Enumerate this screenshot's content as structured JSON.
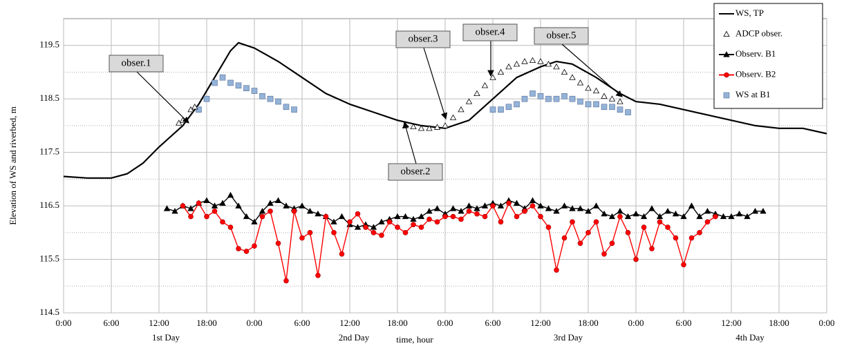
{
  "chart_data": {
    "type": "line",
    "y_label": "Elevation of WS and riverbed, m",
    "x_label": "time, hour",
    "day_labels": [
      "1st Day",
      "2nd Day",
      "3rd Day",
      "4th Day"
    ],
    "annotations": [
      "obser.1",
      "obser.2",
      "obser.3",
      "obser.4",
      "obser.5"
    ],
    "xlim": [
      0,
      96
    ],
    "xticks": [
      {
        "value": 0,
        "label": "0:00"
      },
      {
        "value": 6,
        "label": "6:00"
      },
      {
        "value": 12,
        "label": "12:00"
      },
      {
        "value": 18,
        "label": "18:00"
      },
      {
        "value": 24,
        "label": "0:00"
      },
      {
        "value": 30,
        "label": "6:00"
      },
      {
        "value": 36,
        "label": "12:00"
      },
      {
        "value": 42,
        "label": "18:00"
      },
      {
        "value": 48,
        "label": "0:00"
      },
      {
        "value": 54,
        "label": "6:00"
      },
      {
        "value": 60,
        "label": "12:00"
      },
      {
        "value": 66,
        "label": "18:00"
      },
      {
        "value": 72,
        "label": "0:00"
      },
      {
        "value": 78,
        "label": "6:00"
      },
      {
        "value": 84,
        "label": "12:00"
      },
      {
        "value": 90,
        "label": "18:00"
      },
      {
        "value": 96,
        "label": "0:00"
      }
    ],
    "ylim": [
      114.5,
      120
    ],
    "yticks": [
      114.5,
      115.5,
      116.5,
      117.5,
      118.5,
      119.5
    ],
    "y_minor_grid": [
      115,
      116,
      117,
      118,
      119
    ],
    "grid": true,
    "legend": "top-right",
    "series": [
      {
        "name": "WS, TP",
        "color": "#000000",
        "line": true,
        "marker": "none",
        "x": [
          0,
          3,
          6,
          8,
          10,
          12,
          15,
          17,
          19,
          21,
          22,
          24,
          27,
          30,
          33,
          36,
          39,
          42,
          45,
          48,
          51,
          54,
          57,
          60,
          62,
          64,
          67,
          70,
          72,
          75,
          78,
          81,
          84,
          87,
          90,
          93,
          96
        ],
        "values": [
          117.05,
          117.02,
          117.02,
          117.1,
          117.3,
          117.6,
          118.0,
          118.4,
          118.9,
          119.4,
          119.55,
          119.45,
          119.2,
          118.9,
          118.6,
          118.4,
          118.25,
          118.1,
          118.0,
          117.95,
          118.1,
          118.5,
          118.9,
          119.1,
          119.2,
          119.15,
          118.9,
          118.6,
          118.45,
          118.4,
          118.3,
          118.2,
          118.1,
          118.0,
          117.95,
          117.95,
          117.85
        ]
      },
      {
        "name": "ADCP obser.",
        "color": "#000000",
        "line": false,
        "marker": "triangle-open",
        "x": [
          14.5,
          15,
          16,
          16.5,
          43,
          44,
          45,
          46,
          47,
          48,
          49,
          50,
          51,
          52,
          53,
          54,
          55,
          56,
          57,
          58,
          59,
          60,
          61,
          62,
          63,
          64,
          65,
          66,
          67,
          68,
          69,
          70
        ],
        "values": [
          118.05,
          118.1,
          118.3,
          118.35,
          118.0,
          117.98,
          117.95,
          117.95,
          117.97,
          118.0,
          118.15,
          118.3,
          118.45,
          118.6,
          118.75,
          118.9,
          119.0,
          119.1,
          119.15,
          119.2,
          119.22,
          119.2,
          119.15,
          119.1,
          119.0,
          118.9,
          118.8,
          118.7,
          118.65,
          118.55,
          118.5,
          118.45
        ]
      },
      {
        "name": "Observ. B1",
        "color": "#000000",
        "line": true,
        "marker": "triangle",
        "x": [
          13,
          14,
          15,
          16,
          17,
          18,
          19,
          20,
          21,
          22,
          23,
          24,
          25,
          26,
          27,
          28,
          29,
          30,
          31,
          32,
          33,
          34,
          35,
          36,
          37,
          38,
          39,
          40,
          41,
          42,
          43,
          44,
          45,
          46,
          47,
          48,
          49,
          50,
          51,
          52,
          53,
          54,
          55,
          56,
          57,
          58,
          59,
          60,
          61,
          62,
          63,
          64,
          65,
          66,
          67,
          68,
          69,
          70,
          71,
          72,
          73,
          74,
          75,
          76,
          77,
          78,
          79,
          80,
          81,
          82,
          83,
          84,
          85,
          86,
          87,
          88
        ],
        "values": [
          116.45,
          116.4,
          116.5,
          116.45,
          116.55,
          116.6,
          116.5,
          116.55,
          116.7,
          116.5,
          116.3,
          116.2,
          116.4,
          116.55,
          116.6,
          116.5,
          116.45,
          116.5,
          116.4,
          116.35,
          116.3,
          116.2,
          116.3,
          116.15,
          116.1,
          116.15,
          116.1,
          116.2,
          116.25,
          116.3,
          116.3,
          116.25,
          116.3,
          116.4,
          116.45,
          116.35,
          116.45,
          116.4,
          116.5,
          116.45,
          116.5,
          116.55,
          116.5,
          116.6,
          116.55,
          116.45,
          116.6,
          116.5,
          116.45,
          116.4,
          116.5,
          116.45,
          116.45,
          116.4,
          116.5,
          116.35,
          116.3,
          116.4,
          116.3,
          116.35,
          116.3,
          116.45,
          116.3,
          116.4,
          116.35,
          116.3,
          116.5,
          116.3,
          116.4,
          116.35,
          116.3,
          116.3,
          116.35,
          116.3,
          116.4,
          116.4
        ]
      },
      {
        "name": "Observ. B2",
        "color": "#ff0000",
        "line": true,
        "marker": "circle",
        "x": [
          15,
          16,
          17,
          18,
          19,
          20,
          21,
          22,
          23,
          24,
          25,
          26,
          27,
          28,
          29,
          30,
          31,
          32,
          33,
          34,
          35,
          36,
          37,
          38,
          39,
          40,
          41,
          42,
          43,
          44,
          45,
          46,
          47,
          48,
          49,
          50,
          51,
          52,
          53,
          54,
          55,
          56,
          57,
          58,
          59,
          60,
          61,
          62,
          63,
          64,
          65,
          66,
          67,
          68,
          69,
          70,
          71,
          72,
          73,
          74,
          75,
          76,
          77,
          78,
          79,
          80,
          81,
          82
        ],
        "values": [
          116.5,
          116.3,
          116.55,
          116.3,
          116.4,
          116.2,
          116.1,
          115.7,
          115.65,
          115.75,
          116.3,
          116.4,
          115.8,
          115.1,
          116.4,
          115.9,
          116.0,
          115.2,
          116.3,
          116.0,
          115.6,
          116.2,
          116.35,
          116.1,
          116.0,
          115.95,
          116.2,
          116.1,
          116.0,
          116.15,
          116.1,
          116.25,
          116.2,
          116.3,
          116.3,
          116.25,
          116.4,
          116.35,
          116.3,
          116.5,
          116.2,
          116.55,
          116.3,
          116.4,
          116.5,
          116.3,
          116.1,
          115.3,
          115.9,
          116.2,
          115.8,
          116.0,
          116.2,
          115.6,
          115.8,
          116.3,
          116.0,
          115.5,
          116.1,
          115.7,
          116.2,
          116.1,
          115.9,
          115.4,
          115.9,
          116.0,
          116.2,
          116.3
        ]
      },
      {
        "name": "WS at B1",
        "color": "#95b3d7",
        "line": false,
        "marker": "square",
        "x": [
          17,
          18,
          19,
          20,
          21,
          22,
          23,
          24,
          25,
          26,
          27,
          28,
          29,
          54,
          55,
          56,
          57,
          58,
          59,
          60,
          61,
          62,
          63,
          64,
          65,
          66,
          67,
          68,
          69,
          70,
          71
        ],
        "values": [
          118.3,
          118.5,
          118.8,
          118.9,
          118.8,
          118.75,
          118.7,
          118.65,
          118.55,
          118.5,
          118.45,
          118.35,
          118.3,
          118.3,
          118.3,
          118.35,
          118.4,
          118.5,
          118.6,
          118.55,
          118.5,
          118.5,
          118.55,
          118.5,
          118.45,
          118.4,
          118.4,
          118.35,
          118.35,
          118.3,
          118.25
        ]
      }
    ]
  }
}
